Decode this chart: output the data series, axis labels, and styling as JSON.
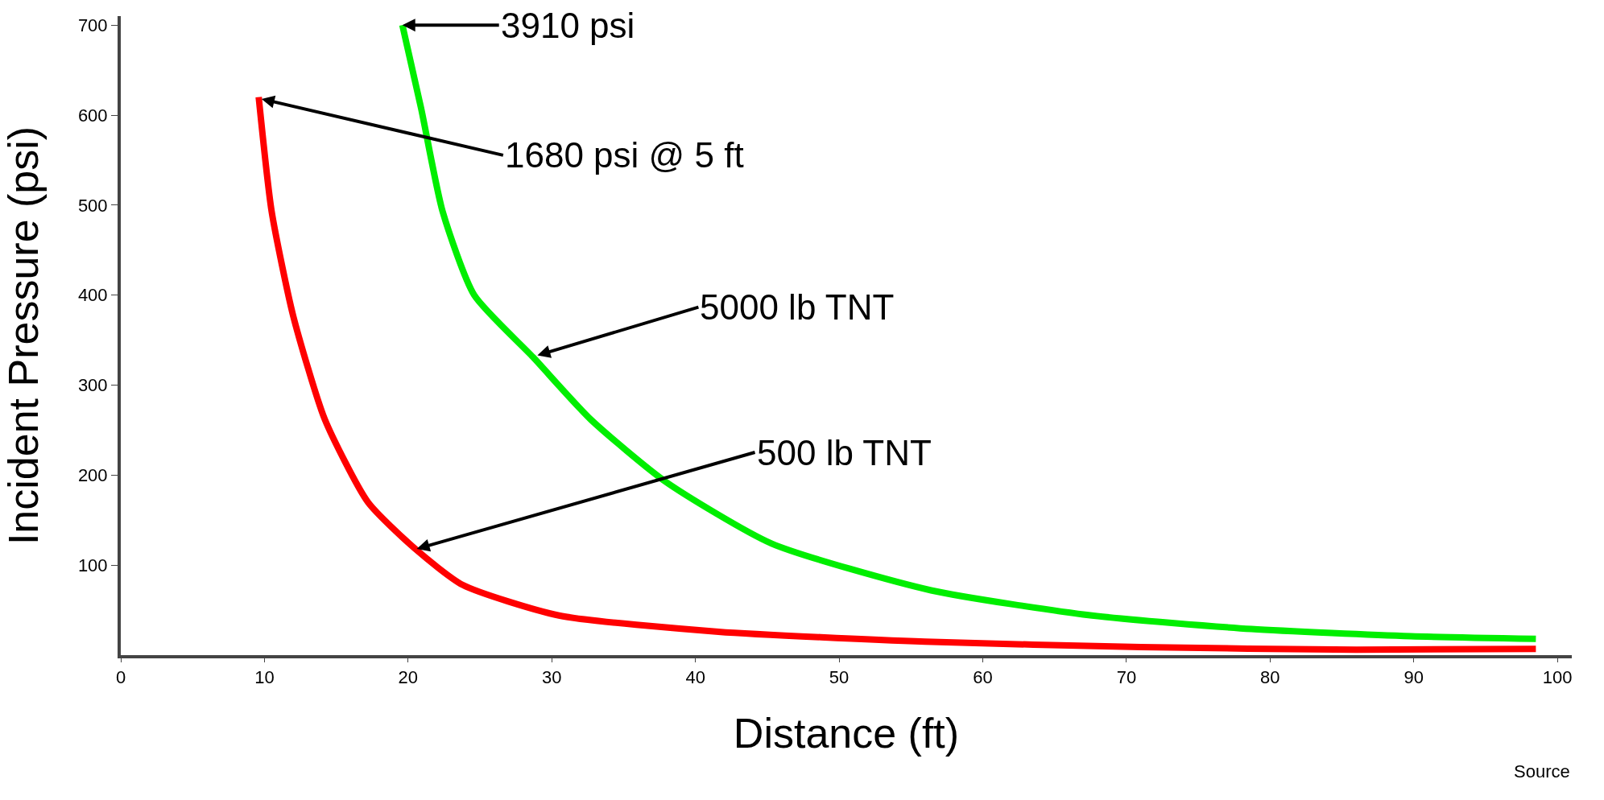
{
  "chart_data": {
    "type": "line",
    "xlabel": "Distance (ft)",
    "ylabel": "Incident Pressure (psi)",
    "xlim": [
      0,
      101
    ],
    "ylim": [
      0,
      710
    ],
    "xticks": [
      0,
      10,
      20,
      30,
      40,
      50,
      60,
      70,
      80,
      90,
      100
    ],
    "yticks": [
      100,
      200,
      300,
      400,
      500,
      600,
      700
    ],
    "legend": false,
    "marker": "none",
    "line_style": "solid",
    "series": [
      {
        "color": "#ff0000",
        "x": [
          9.6,
          10.5,
          12,
          14.2,
          17.2,
          20.5,
          23.8,
          30.5,
          41.6,
          56,
          71,
          86,
          98.5
        ],
        "values": [
          620,
          493,
          377,
          262,
          170,
          118,
          78,
          44,
          26,
          15,
          9,
          6,
          7
        ]
      },
      {
        "color": "#00ee00",
        "x": [
          19.6,
          20.9,
          22.4,
          24.6,
          28.7,
          32.7,
          37.9,
          45.3,
          56.4,
          67.6,
          78.7,
          89.8,
          98.5
        ],
        "values": [
          700,
          608,
          493,
          400,
          331,
          262,
          193,
          124,
          72,
          44,
          29,
          21,
          18
        ]
      }
    ],
    "annotations": [
      {
        "text": "3910 psi",
        "x": 19.6,
        "y": 700
      },
      {
        "text": "1680 psi @ 5 ft",
        "x": 9.8,
        "y": 618
      },
      {
        "text": "5000 lb TNT",
        "x": 29,
        "y": 333
      },
      {
        "text": "500 lb TNT",
        "x": 20.6,
        "y": 118
      },
      "Source"
    ]
  }
}
